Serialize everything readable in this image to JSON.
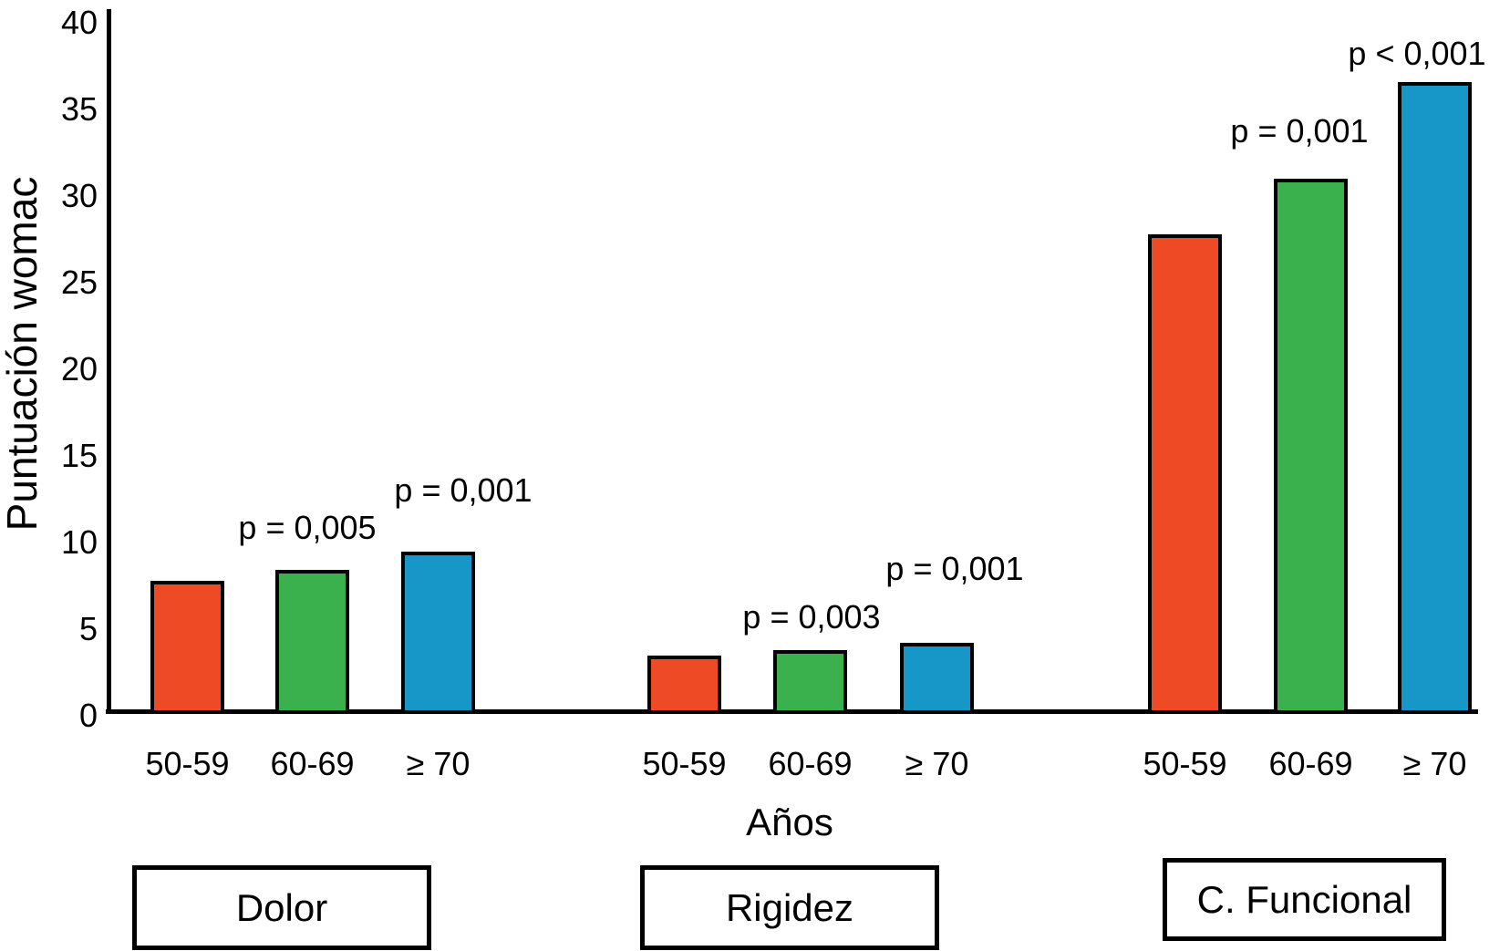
{
  "chart_data": {
    "type": "bar",
    "title": "",
    "ylabel": "Puntuación womac",
    "xlabel": "Años",
    "ylim": [
      0,
      40
    ],
    "yticks": [
      0,
      5,
      10,
      15,
      20,
      25,
      30,
      35,
      40
    ],
    "age_categories": [
      "50-59",
      "60-69",
      "≥ 70"
    ],
    "bar_colors": [
      "#ED4A25",
      "#3BB14E",
      "#1796C8"
    ],
    "axis_color": "#000000",
    "background_color": "#FFFFFF",
    "grid": false,
    "legend": "none",
    "groups": [
      {
        "label": "Dolor",
        "values": [
          7.8,
          8.4,
          9.5
        ],
        "annotations": [
          "",
          "p = 0,005",
          "p = 0,001"
        ]
      },
      {
        "label": "Rigidez",
        "values": [
          3.5,
          3.8,
          4.2
        ],
        "annotations": [
          "",
          "p = 0,003",
          "p = 0,001"
        ]
      },
      {
        "label": "C. Funcional",
        "values": [
          27.8,
          31.0,
          36.6
        ],
        "annotations": [
          "",
          "p = 0,001",
          "p < 0,001"
        ]
      }
    ]
  }
}
